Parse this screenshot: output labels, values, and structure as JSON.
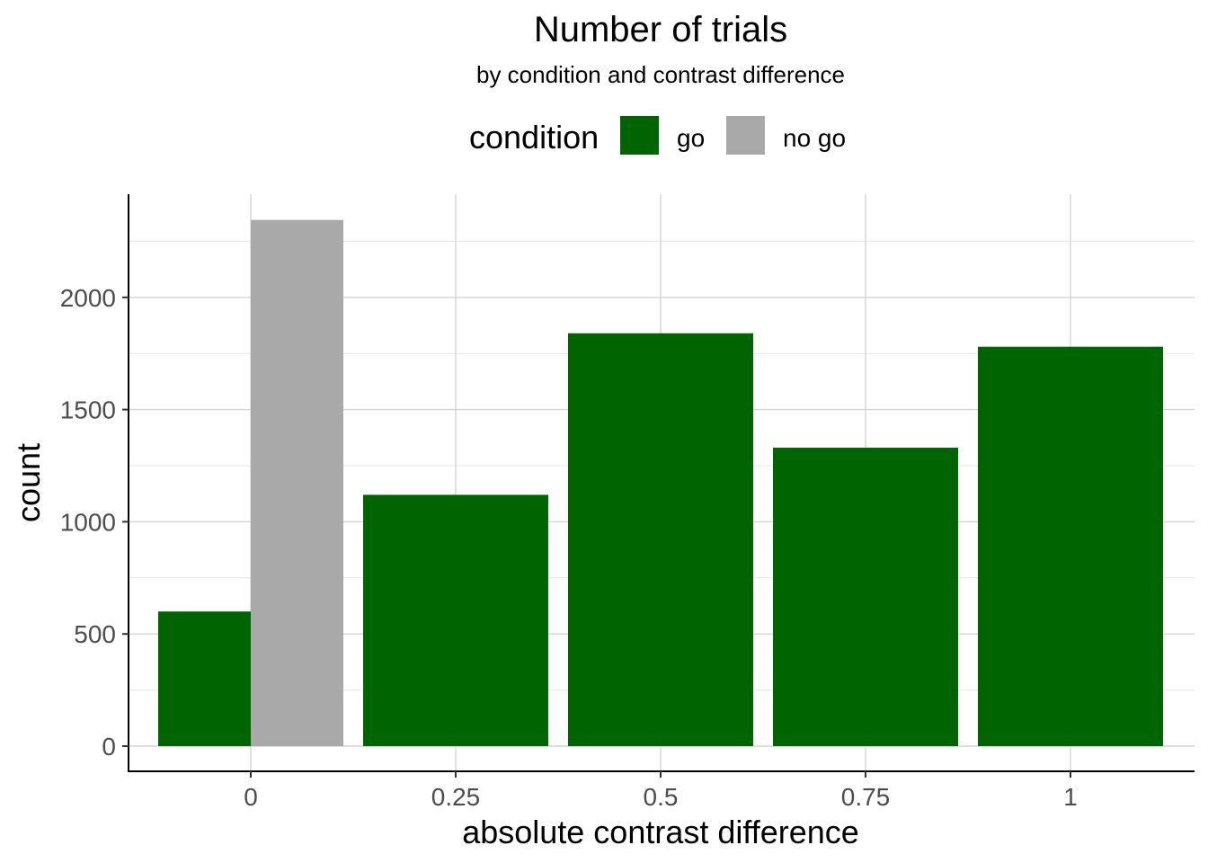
{
  "chart_data": {
    "type": "bar",
    "title": "Number of trials",
    "subtitle": "by condition and contrast difference",
    "xlabel": "absolute contrast difference",
    "ylabel": "count",
    "categories": [
      "0",
      "0.25",
      "0.5",
      "0.75",
      "1"
    ],
    "series": [
      {
        "name": "go",
        "color": "#006400",
        "values": [
          600,
          1120,
          1840,
          1330,
          1780
        ]
      },
      {
        "name": "no go",
        "color": "#a9a9a9",
        "values": [
          2345,
          null,
          null,
          null,
          null
        ]
      }
    ],
    "legend": {
      "title": "condition",
      "position": "top"
    },
    "ylim": [
      0,
      2400
    ],
    "yticks": [
      0,
      500,
      1000,
      1500,
      2000
    ],
    "grid": true
  }
}
